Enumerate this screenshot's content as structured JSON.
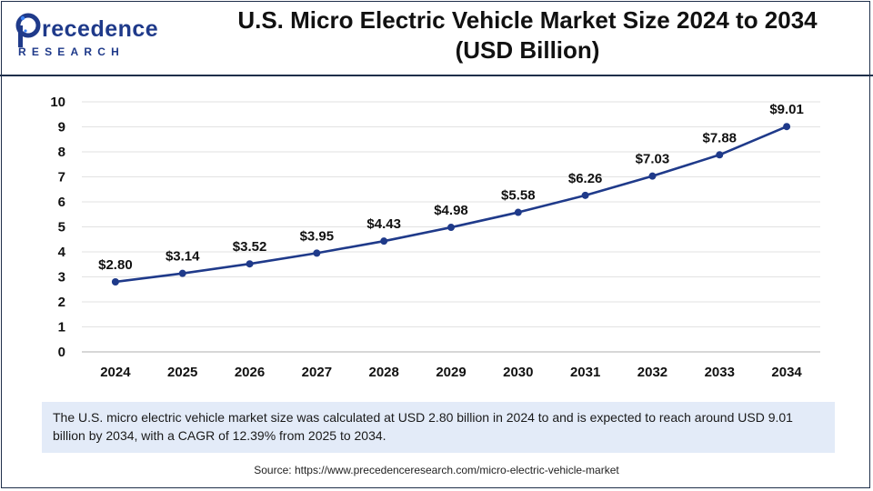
{
  "brand": {
    "name_top": "recedence",
    "name_bottom": "RESEARCH",
    "letter": "P",
    "color": "#1f3a8a"
  },
  "chart_data": {
    "type": "line",
    "title_line1": "U.S. Micro Electric Vehicle Market Size 2024 to 2034",
    "title_line2": "(USD Billion)",
    "categories": [
      "2024",
      "2025",
      "2026",
      "2027",
      "2028",
      "2029",
      "2030",
      "2031",
      "2032",
      "2033",
      "2034"
    ],
    "values": [
      2.8,
      3.14,
      3.52,
      3.95,
      4.43,
      4.98,
      5.58,
      6.26,
      7.03,
      7.88,
      9.01
    ],
    "data_labels": [
      "$2.80",
      "$3.14",
      "$3.52",
      "$3.95",
      "$4.43",
      "$4.98",
      "$5.58",
      "$6.26",
      "$7.03",
      "$7.88",
      "$9.01"
    ],
    "yticks": [
      0,
      1,
      2,
      3,
      4,
      5,
      6,
      7,
      8,
      9,
      10
    ],
    "ylim": [
      0,
      10
    ],
    "xlabel": "",
    "ylabel": "",
    "grid": true,
    "line_color": "#1f3a8a"
  },
  "note": "The U.S. micro electric vehicle market size was calculated at USD 2.80 billion in 2024 to and is expected to reach around USD 9.01 billion by 2034, with a CAGR of 12.39% from 2025 to 2034.",
  "source": "Source: https://www.precedenceresearch.com/micro-electric-vehicle-market"
}
